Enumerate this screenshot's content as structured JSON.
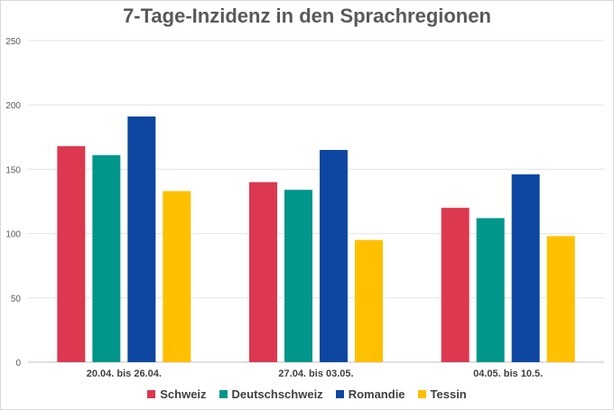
{
  "chart_data": {
    "type": "bar",
    "title": "7-Tage-Inzidenz in den Sprachregionen",
    "xlabel": "",
    "ylabel": "",
    "ylim": [
      0,
      250
    ],
    "yticks": [
      0,
      50,
      100,
      150,
      200,
      250
    ],
    "grid": true,
    "legend_position": "bottom",
    "categories": [
      "20.04. bis 26.04.",
      "27.04. bis 03.05.",
      "04.05. bis 10.5."
    ],
    "series": [
      {
        "name": "Schweiz",
        "color": "#dc3850",
        "values": [
          168,
          140,
          120
        ]
      },
      {
        "name": "Deutschschweiz",
        "color": "#00968a",
        "values": [
          161,
          134,
          112
        ]
      },
      {
        "name": "Romandie",
        "color": "#0d47a1",
        "values": [
          191,
          165,
          146
        ]
      },
      {
        "name": "Tessin",
        "color": "#ffc000",
        "values": [
          133,
          95,
          98
        ]
      }
    ]
  }
}
